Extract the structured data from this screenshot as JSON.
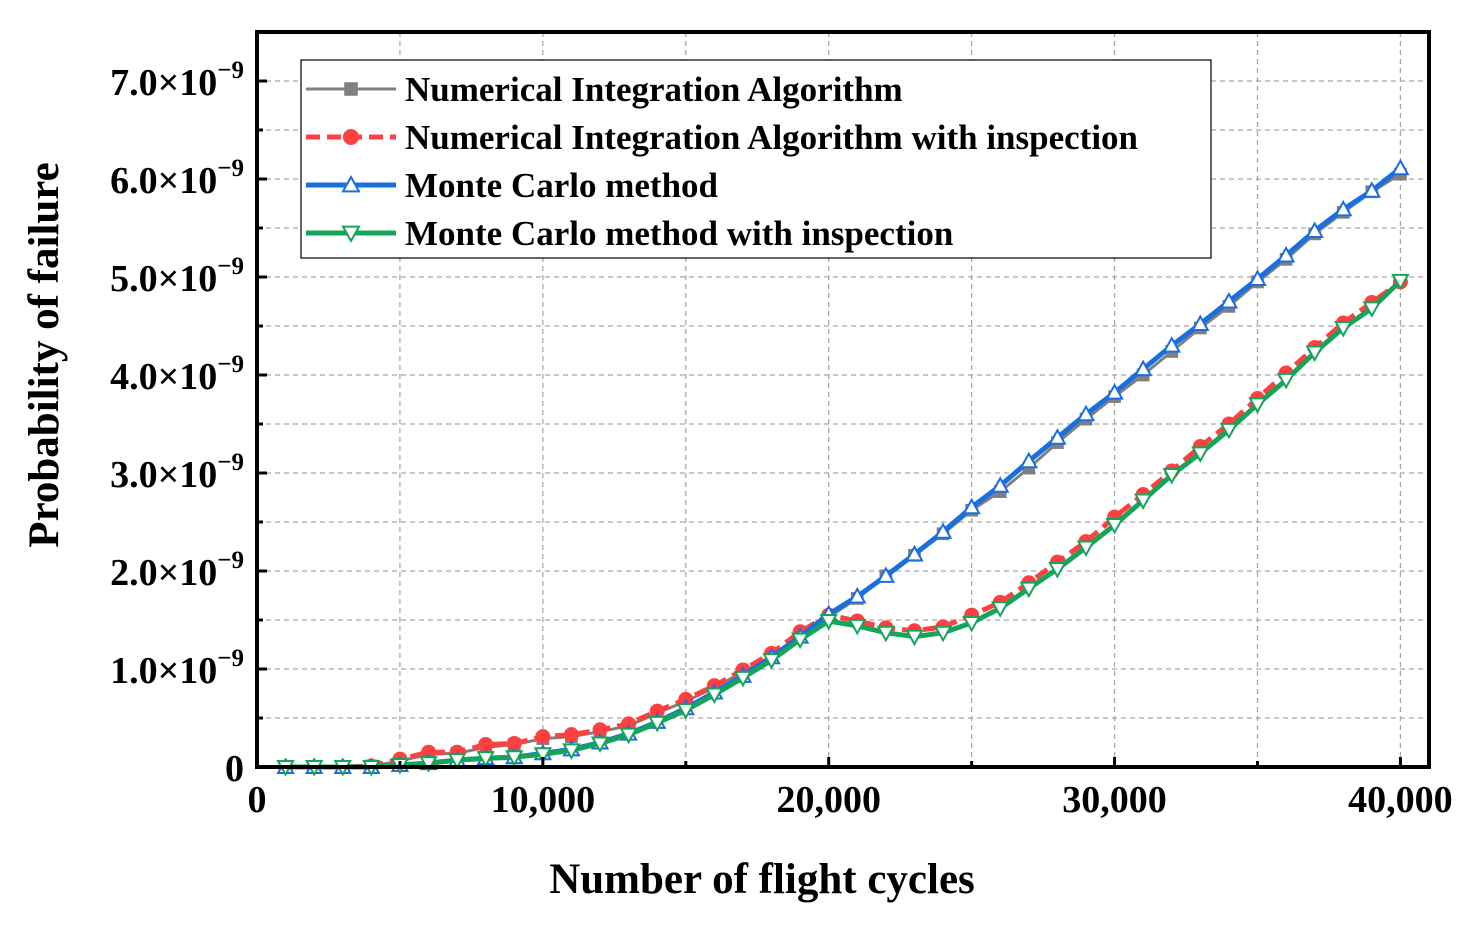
{
  "chart_data": {
    "type": "line",
    "title": "",
    "xlabel": "Number of flight  cycles",
    "ylabel": "Probability of failure",
    "xlim": [
      0,
      41000
    ],
    "ylim": [
      0,
      7.5e-09
    ],
    "x_ticks": [
      {
        "value": 0,
        "label": "0"
      },
      {
        "value": 10000,
        "label": "10,000"
      },
      {
        "value": 20000,
        "label": "20,000"
      },
      {
        "value": 30000,
        "label": "30,000"
      },
      {
        "value": 40000,
        "label": "40,000"
      }
    ],
    "y_ticks": [
      {
        "value": 0,
        "mant": "0",
        "exp": ""
      },
      {
        "value": 1e-09,
        "mant": "1.0×10",
        "exp": "−9"
      },
      {
        "value": 2e-09,
        "mant": "2.0×10",
        "exp": "−9"
      },
      {
        "value": 3e-09,
        "mant": "3.0×10",
        "exp": "−9"
      },
      {
        "value": 4e-09,
        "mant": "4.0×10",
        "exp": "−9"
      },
      {
        "value": 5e-09,
        "mant": "5.0×10",
        "exp": "−9"
      },
      {
        "value": 6e-09,
        "mant": "6.0×10",
        "exp": "−9"
      },
      {
        "value": 7e-09,
        "mant": "7.0×10",
        "exp": "−9"
      }
    ],
    "grid": true,
    "legend_position": "top-left",
    "x": [
      1000,
      2000,
      3000,
      4000,
      5000,
      6000,
      7000,
      8000,
      9000,
      10000,
      11000,
      12000,
      13000,
      14000,
      15000,
      16000,
      17000,
      18000,
      19000,
      20000,
      21000,
      22000,
      23000,
      24000,
      25000,
      26000,
      27000,
      28000,
      29000,
      30000,
      31000,
      32000,
      33000,
      34000,
      35000,
      36000,
      37000,
      38000,
      39000,
      40000
    ],
    "series": [
      {
        "name": "Numerical Integration Algorithm",
        "color": "#808080",
        "marker": "square",
        "dash": "solid",
        "values": [
          0.0,
          0.0,
          0.0,
          1e-11,
          6e-11,
          1.3e-10,
          1.4e-10,
          2e-10,
          2.3e-10,
          2.9e-10,
          3.1e-10,
          3.6e-10,
          4.2e-10,
          5.5e-10,
          6.7e-10,
          8.1e-10,
          9.7e-10,
          1.13e-09,
          1.35e-09,
          1.53e-09,
          1.72e-09,
          1.95e-09,
          2.16e-09,
          2.38e-09,
          2.62e-09,
          2.81e-09,
          3.05e-09,
          3.31e-09,
          3.55e-09,
          3.78e-09,
          4e-09,
          4.24e-09,
          4.48e-09,
          4.7e-09,
          4.95e-09,
          5.18e-09,
          5.44e-09,
          5.66e-09,
          5.87e-09,
          6.05e-09
        ]
      },
      {
        "name": "Numerical Integration Algorithm with inspection",
        "color": "#ff4040",
        "marker": "circle",
        "dash": "dashed",
        "values": [
          0.0,
          0.0,
          0.0,
          1e-11,
          8e-11,
          1.5e-10,
          1.5e-10,
          2.3e-10,
          2.4e-10,
          3.1e-10,
          3.3e-10,
          3.8e-10,
          4.4e-10,
          5.7e-10,
          6.9e-10,
          8.3e-10,
          9.9e-10,
          1.16e-09,
          1.38e-09,
          1.55e-09,
          1.49e-09,
          1.42e-09,
          1.39e-09,
          1.43e-09,
          1.55e-09,
          1.68e-09,
          1.88e-09,
          2.09e-09,
          2.3e-09,
          2.55e-09,
          2.78e-09,
          3.02e-09,
          3.27e-09,
          3.5e-09,
          3.76e-09,
          4.02e-09,
          4.28e-09,
          4.53e-09,
          4.74e-09,
          4.95e-09
        ]
      },
      {
        "name": "Monte Carlo method",
        "color": "#1a6fdf",
        "marker": "triangle-up",
        "dash": "solid",
        "values": [
          0.0,
          0.0,
          0.0,
          0.0,
          2e-11,
          4e-11,
          7e-11,
          9e-11,
          1e-10,
          1.4e-10,
          1.8e-10,
          2.5e-10,
          3.4e-10,
          4.6e-10,
          6e-10,
          7.6e-10,
          9.3e-10,
          1.12e-09,
          1.33e-09,
          1.56e-09,
          1.74e-09,
          1.95e-09,
          2.17e-09,
          2.4e-09,
          2.65e-09,
          2.87e-09,
          3.12e-09,
          3.36e-09,
          3.6e-09,
          3.82e-09,
          4.06e-09,
          4.3e-09,
          4.52e-09,
          4.75e-09,
          4.98e-09,
          5.22e-09,
          5.47e-09,
          5.69e-09,
          5.88e-09,
          6.11e-09
        ]
      },
      {
        "name": "Monte Carlo method with inspection",
        "color": "#16a35a",
        "marker": "triangle-down",
        "dash": "solid",
        "values": [
          0.0,
          0.0,
          0.0,
          0.0,
          2e-11,
          4e-11,
          7e-11,
          9e-11,
          1e-10,
          1.3e-10,
          1.7e-10,
          2.4e-10,
          3.3e-10,
          4.5e-10,
          5.8e-10,
          7.4e-10,
          9.1e-10,
          1.09e-09,
          1.3e-09,
          1.49e-09,
          1.44e-09,
          1.37e-09,
          1.33e-09,
          1.37e-09,
          1.47e-09,
          1.62e-09,
          1.82e-09,
          2.02e-09,
          2.24e-09,
          2.47e-09,
          2.72e-09,
          2.98e-09,
          3.2e-09,
          3.44e-09,
          3.7e-09,
          3.95e-09,
          4.23e-09,
          4.48e-09,
          4.68e-09,
          4.96e-09
        ]
      }
    ]
  }
}
